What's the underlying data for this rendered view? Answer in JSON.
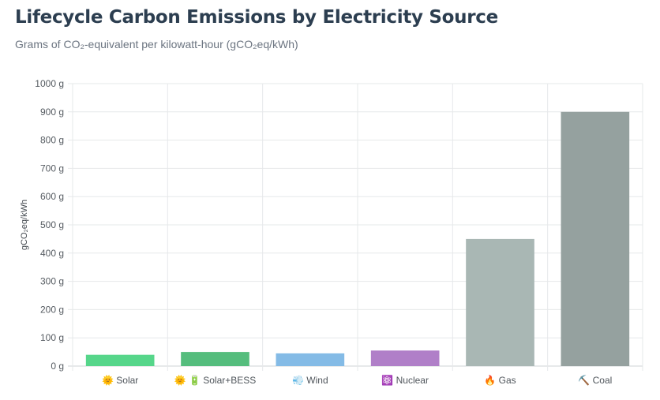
{
  "title": "Lifecycle Carbon Emissions by Electricity Source",
  "subtitle": "Grams of CO₂-equivalent per kilowatt-hour (gCO₂eq/kWh)",
  "chart_data": {
    "type": "bar",
    "categories": [
      "🌞 Solar",
      "🌞 🔋 Solar+BESS",
      "💨 Wind",
      "⚛️ Nuclear",
      "🔥 Gas",
      "⛏️ Coal"
    ],
    "values": [
      40,
      50,
      45,
      55,
      450,
      900
    ],
    "colors": [
      "#56d68a",
      "#55bd7d",
      "#84bbe6",
      "#b07fc8",
      "#a9b7b4",
      "#95a19f"
    ],
    "ylabel": "gCO₂eq/kWh",
    "ylim": [
      0,
      1000
    ],
    "yticks": [
      0,
      100,
      200,
      300,
      400,
      500,
      600,
      700,
      800,
      900,
      1000
    ],
    "ytick_suffix": " g",
    "grid": true,
    "legend": "none"
  }
}
